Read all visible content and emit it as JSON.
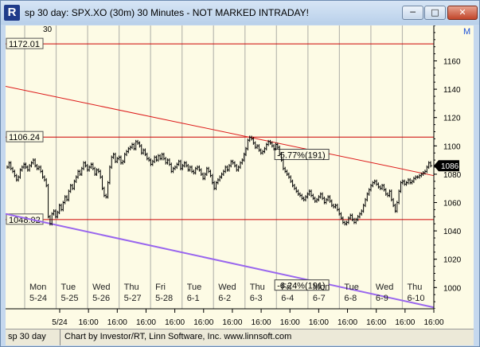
{
  "window": {
    "title": "sp 30 day: SPX.XO (30m) 30 Minutes - NOT MARKED INTRADAY!"
  },
  "status_bar": {
    "chart_name": "sp 30 day",
    "credit": "Chart by Investor/RT, Linn Software, Inc. www.linnsoft.com"
  },
  "chart_data": {
    "type": "line",
    "title": "",
    "symbol": "SPX.XO",
    "interval": "30 Minutes",
    "ylim": [
      985,
      1185
    ],
    "y_ticks": [
      1000,
      1020,
      1040,
      1060,
      1080,
      1100,
      1120,
      1140,
      1160
    ],
    "day_labels": [
      {
        "dow": "Mon",
        "date": "5-24"
      },
      {
        "dow": "Tue",
        "date": "5-25"
      },
      {
        "dow": "Wed",
        "date": "5-26"
      },
      {
        "dow": "Thu",
        "date": "5-27"
      },
      {
        "dow": "Fri",
        "date": "5-28"
      },
      {
        "dow": "Tue",
        "date": "6-1"
      },
      {
        "dow": "Wed",
        "date": "6-2"
      },
      {
        "dow": "Thu",
        "date": "6-3"
      },
      {
        "dow": "Fri",
        "date": "6-4"
      },
      {
        "dow": "Mon",
        "date": "6-7"
      },
      {
        "dow": "Tue",
        "date": "6-8"
      },
      {
        "dow": "Wed",
        "date": "6-9"
      },
      {
        "dow": "Thu",
        "date": "6-10"
      }
    ],
    "x_tick_labels": [
      "5/24",
      "16:00",
      "16:00",
      "16:00",
      "16:00",
      "16:00",
      "16:00",
      "16:00",
      "16:00",
      "16:00",
      "16:00",
      "16:00",
      "16:00",
      "16:00"
    ],
    "horizontal_levels": [
      {
        "value": 1172.01,
        "label": "1172.01",
        "color": "#cc0000"
      },
      {
        "value": 1106.24,
        "label": "1106.24",
        "color": "#cc0000"
      },
      {
        "value": 1048.02,
        "label": "1048.02",
        "color": "#cc0000"
      }
    ],
    "trendlines": [
      {
        "start": 1142,
        "end": 1079,
        "color": "#dd1a1a",
        "label": "-5.77%(191)",
        "label_pos": 0.74
      },
      {
        "start": 1052,
        "end": 986,
        "color": "#9966ee",
        "label": "-6.24%(191)",
        "label_pos": 0.74
      }
    ],
    "last_price": {
      "value": 1086,
      "label": "1086"
    },
    "corner_marker": "M",
    "partial_label": "30",
    "series": [
      {
        "values": [
          1085,
          1088,
          1084,
          1082,
          1079,
          1076,
          1078,
          1083,
          1085,
          1087,
          1085,
          1083,
          1086,
          1088,
          1090,
          1086,
          1084,
          1085,
          1082,
          1078,
          1076,
          1072,
          1050,
          1045,
          1052,
          1054,
          1050,
          1053,
          1058,
          1055,
          1060,
          1064,
          1062,
          1068,
          1072,
          1070,
          1075,
          1078,
          1082,
          1080,
          1084,
          1088,
          1086,
          1083,
          1085,
          1087,
          1084,
          1080,
          1083,
          1082,
          1078,
          1070,
          1065,
          1064,
          1074,
          1085,
          1092,
          1094,
          1089,
          1091,
          1092,
          1088,
          1089,
          1094,
          1096,
          1098,
          1099,
          1101,
          1098,
          1103,
          1102,
          1100,
          1095,
          1097,
          1094,
          1091,
          1090,
          1087,
          1089,
          1092,
          1090,
          1093,
          1091,
          1094,
          1091,
          1088,
          1090,
          1087,
          1082,
          1084,
          1085,
          1087,
          1089,
          1084,
          1086,
          1088,
          1086,
          1083,
          1085,
          1082,
          1081,
          1084,
          1085,
          1083,
          1080,
          1077,
          1080,
          1084,
          1082,
          1079,
          1074,
          1070,
          1074,
          1076,
          1078,
          1080,
          1082,
          1085,
          1083,
          1086,
          1089,
          1088,
          1086,
          1083,
          1085,
          1088,
          1090,
          1094,
          1098,
          1104,
          1106,
          1105,
          1102,
          1099,
          1100,
          1097,
          1095,
          1096,
          1098,
          1101,
          1103,
          1102,
          1100,
          1098,
          1101,
          1099,
          1094,
          1090,
          1084,
          1082,
          1080,
          1078,
          1075,
          1072,
          1070,
          1068,
          1066,
          1065,
          1063,
          1062,
          1064,
          1066,
          1068,
          1065,
          1063,
          1061,
          1062,
          1064,
          1066,
          1063,
          1060,
          1062,
          1064,
          1061,
          1058,
          1057,
          1058,
          1055,
          1052,
          1049,
          1046,
          1045,
          1046,
          1049,
          1051,
          1048,
          1046,
          1048,
          1050,
          1052,
          1054,
          1058,
          1062,
          1066,
          1069,
          1072,
          1074,
          1075,
          1073,
          1071,
          1070,
          1072,
          1069,
          1066,
          1065,
          1068,
          1062,
          1058,
          1054,
          1060,
          1068,
          1074,
          1075,
          1073,
          1074,
          1076,
          1074,
          1075,
          1077,
          1078,
          1078,
          1079,
          1080,
          1081,
          1082,
          1085,
          1088,
          1086
        ]
      }
    ]
  }
}
